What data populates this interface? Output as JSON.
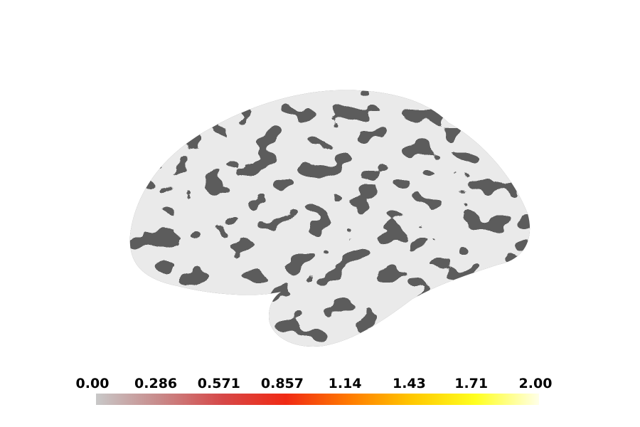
{
  "colorbar": {
    "range": [
      0,
      2
    ],
    "ticks": [
      {
        "value": 0,
        "label": "0.00"
      },
      0.286,
      0.571,
      0.857,
      1.14,
      1.43,
      1.71,
      {
        "value": 2,
        "label": "2.00"
      }
    ],
    "colors": [
      "#c8c8c8",
      "#c88a8a",
      "#d64848",
      "#f02a14",
      "#ff7a00",
      "#ffc800",
      "#ffff20",
      "#ffffe8"
    ]
  }
}
